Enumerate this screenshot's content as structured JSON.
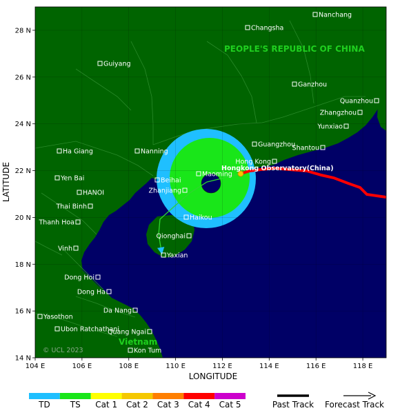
{
  "map": {
    "country_label": "PEOPLE'S REPUBLIC OF CHINA",
    "vietnam_label": "Vietnam",
    "copyright": "© UCL 2023",
    "xlabel": "LONGITUDE",
    "ylabel": "LATITUDE",
    "x_ticks": [
      "104 E",
      "106 E",
      "108 E",
      "110 E",
      "112 E",
      "114 E",
      "116 E",
      "118 E"
    ],
    "y_ticks": [
      "14 N",
      "16 N",
      "18 N",
      "20 N",
      "22 N",
      "24 N",
      "26 N",
      "28 N"
    ],
    "highlight_label": "Hongkong Observatory(China)",
    "colors": {
      "land": "#006400",
      "sea": "#000066",
      "td": "#1fbfff",
      "ts": "#19e619",
      "track": "#ff0000",
      "forecast": "#2fd52f",
      "forecast_arrow": "#1fbfff"
    }
  },
  "cities": [
    {
      "name": "Nanchang"
    },
    {
      "name": "Changsha"
    },
    {
      "name": "Guiyang"
    },
    {
      "name": "Ganzhou"
    },
    {
      "name": "Quanzhou"
    },
    {
      "name": "Zhangzhou"
    },
    {
      "name": "Yunxiao"
    },
    {
      "name": "Guangzhou"
    },
    {
      "name": "Shantou"
    },
    {
      "name": "Ha Giang"
    },
    {
      "name": "Nanning"
    },
    {
      "name": "Hong Kong"
    },
    {
      "name": "Yen Bai"
    },
    {
      "name": "Beihai"
    },
    {
      "name": "Maoming"
    },
    {
      "name": "HANOI"
    },
    {
      "name": "Zhanjiang"
    },
    {
      "name": "Thai Binh"
    },
    {
      "name": "Haikou"
    },
    {
      "name": "Thanh Hoa"
    },
    {
      "name": "Qionghai"
    },
    {
      "name": "Vinh"
    },
    {
      "name": "Yaxian"
    },
    {
      "name": "Dong Hoi"
    },
    {
      "name": "Dong Ha"
    },
    {
      "name": "Yasothon"
    },
    {
      "name": "Da Nang"
    },
    {
      "name": "Ubon Ratchathani"
    },
    {
      "name": "Quang Ngai"
    },
    {
      "name": "Kon Tum"
    }
  ],
  "legend": {
    "categories": [
      {
        "label": "TD",
        "color": "#1fbfff"
      },
      {
        "label": "TS",
        "color": "#19e619"
      },
      {
        "label": "Cat 1",
        "color": "#ffff00"
      },
      {
        "label": "Cat 2",
        "color": "#f5c800"
      },
      {
        "label": "Cat 3",
        "color": "#ff7f00"
      },
      {
        "label": "Cat 4",
        "color": "#ff0000"
      },
      {
        "label": "Cat 5",
        "color": "#cc00cc"
      }
    ],
    "past_track": "Past Track",
    "forecast_track": "Forecast Track"
  }
}
